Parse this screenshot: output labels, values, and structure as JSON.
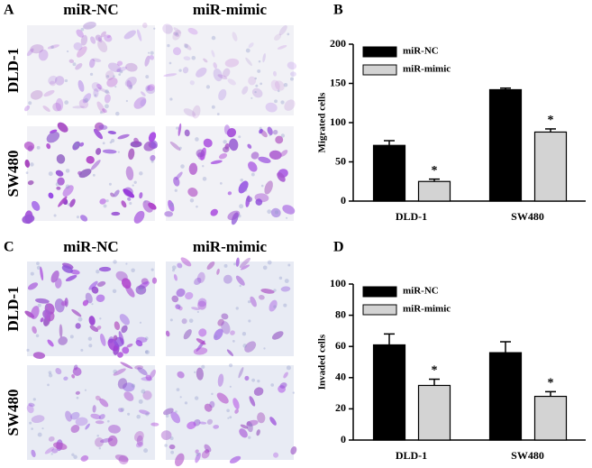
{
  "images": [
    {
      "panel_label": "A",
      "columns": [
        "miR-NC",
        "miR-mimic"
      ],
      "rows": [
        "DLD-1",
        "SW480"
      ]
    },
    {
      "panel_label": "C",
      "columns": [
        "miR-NC",
        "miR-mimic"
      ],
      "rows": [
        "DLD-1",
        "SW480"
      ]
    }
  ],
  "chart_data": [
    {
      "type": "bar",
      "panel_label": "B",
      "y_label": "Migrated cells",
      "categories": [
        "DLD-1",
        "SW480"
      ],
      "series": [
        {
          "name": "miR-NC",
          "color": "#000000",
          "values": [
            71,
            142
          ],
          "errors": [
            6,
            2
          ]
        },
        {
          "name": "miR-mimic",
          "color": "#d3d3d3",
          "values": [
            25,
            88
          ],
          "errors": [
            3,
            4
          ],
          "markers": [
            "*",
            "*"
          ]
        }
      ],
      "ylim": [
        0,
        200
      ],
      "yticks": [
        0,
        50,
        100,
        150,
        200
      ],
      "legend": "upper left"
    },
    {
      "type": "bar",
      "panel_label": "D",
      "y_label": "Invaded cells",
      "categories": [
        "DLD-1",
        "SW480"
      ],
      "series": [
        {
          "name": "miR-NC",
          "color": "#000000",
          "values": [
            61,
            56
          ],
          "errors": [
            7,
            7
          ]
        },
        {
          "name": "miR-mimic",
          "color": "#d3d3d3",
          "values": [
            35,
            28
          ],
          "errors": [
            4,
            3
          ],
          "markers": [
            "*",
            "*"
          ]
        }
      ],
      "ylim": [
        0,
        100
      ],
      "yticks": [
        0,
        20,
        40,
        60,
        80,
        100
      ],
      "legend": "upper left"
    }
  ]
}
